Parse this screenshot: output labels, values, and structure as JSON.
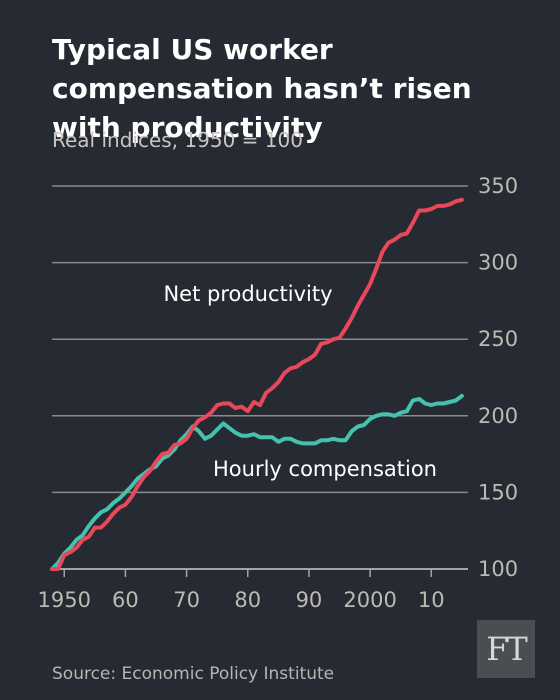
{
  "header": {
    "title": "Typical US worker compensation hasn’t risen with productivity",
    "subtitle": "Real indices, 1950 = 100"
  },
  "footer": {
    "source": "Source: Economic Policy Institute",
    "logo_text": "FT"
  },
  "colors": {
    "background": "#262a33",
    "gridline": "#8a8a8a",
    "productivity": "#e8485a",
    "compensation": "#45c1ad"
  },
  "chart_data": {
    "type": "line",
    "title": "Typical US worker compensation hasn’t risen with productivity",
    "subtitle": "Real indices, 1950 = 100",
    "xlabel": "",
    "ylabel": "",
    "xlim": [
      1948,
      2016
    ],
    "ylim": [
      100,
      350
    ],
    "y_ticks": [
      100,
      150,
      200,
      250,
      300,
      350
    ],
    "y_axis_position": "right",
    "grid": true,
    "x_ticks": [
      {
        "value": 1950,
        "label": "1950"
      },
      {
        "value": 1960,
        "label": "60"
      },
      {
        "value": 1970,
        "label": "70"
      },
      {
        "value": 1980,
        "label": "80"
      },
      {
        "value": 1990,
        "label": "90"
      },
      {
        "value": 2000,
        "label": "2000"
      },
      {
        "value": 2010,
        "label": "10"
      }
    ],
    "x": [
      1948,
      1949,
      1950,
      1951,
      1952,
      1953,
      1954,
      1955,
      1956,
      1957,
      1958,
      1959,
      1960,
      1961,
      1962,
      1963,
      1964,
      1965,
      1966,
      1967,
      1968,
      1969,
      1970,
      1971,
      1972,
      1973,
      1974,
      1975,
      1976,
      1977,
      1978,
      1979,
      1980,
      1981,
      1982,
      1983,
      1984,
      1985,
      1986,
      1987,
      1988,
      1989,
      1990,
      1991,
      1992,
      1993,
      1994,
      1995,
      1996,
      1997,
      1998,
      1999,
      2000,
      2001,
      2002,
      2003,
      2004,
      2005,
      2006,
      2007,
      2008,
      2009,
      2010,
      2011,
      2012,
      2013,
      2014,
      2015
    ],
    "series": [
      {
        "name": "Net productivity",
        "values": [
          100,
          100,
          109,
          111,
          114,
          119,
          121,
          127,
          127,
          131,
          136,
          140,
          142,
          147,
          154,
          160,
          164,
          170,
          175,
          176,
          181,
          182,
          185,
          192,
          197,
          199,
          202,
          207,
          208,
          208,
          205,
          206,
          203,
          209,
          207,
          215,
          218,
          222,
          228,
          231,
          232,
          235,
          237,
          240,
          247,
          248,
          250,
          251,
          257,
          264,
          272,
          279,
          286,
          296,
          307,
          313,
          315,
          318,
          319,
          326,
          334,
          334,
          335,
          337,
          337,
          338,
          340,
          341
        ],
        "color": "#e8485a",
        "label": "Net productivity"
      },
      {
        "name": "Hourly compensation",
        "values": [
          100,
          104,
          110,
          114,
          119,
          122,
          128,
          133,
          137,
          139,
          143,
          146,
          150,
          154,
          159,
          162,
          165,
          167,
          172,
          174,
          178,
          184,
          188,
          193,
          190,
          185,
          187,
          191,
          195,
          192,
          189,
          187,
          187,
          188,
          186,
          186,
          186,
          183,
          185,
          185,
          183,
          182,
          182,
          182,
          184,
          184,
          185,
          184,
          184,
          190,
          193,
          194,
          198,
          200,
          201,
          201,
          200,
          202,
          203,
          210,
          211,
          208,
          207,
          208,
          208,
          209,
          210,
          213
        ],
        "color": "#45c1ad",
        "label": "Hourly compensation"
      }
    ]
  }
}
